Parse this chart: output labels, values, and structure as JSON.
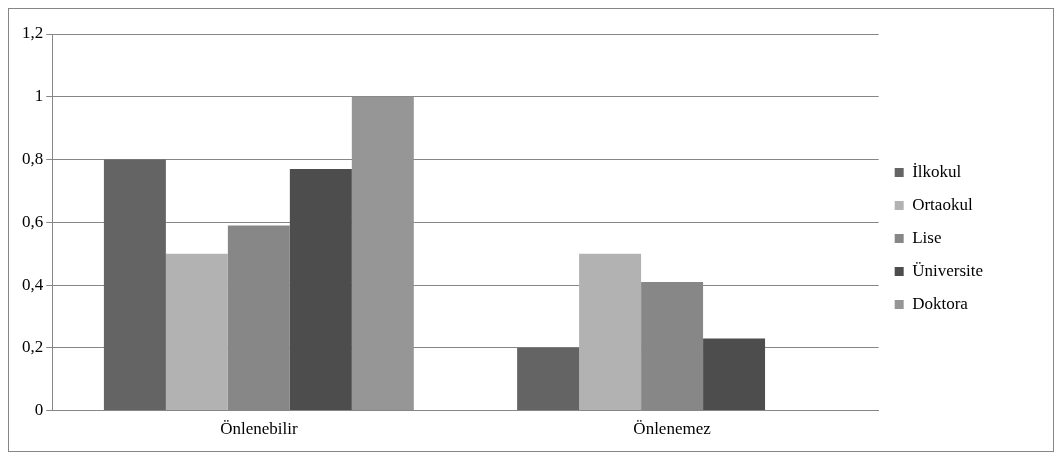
{
  "chart_data": {
    "type": "bar",
    "categories": [
      "Önlenebilir",
      "Önlenemez"
    ],
    "series": [
      {
        "name": "İlkokul",
        "color": "#646464",
        "values": [
          0.8,
          0.2
        ]
      },
      {
        "name": "Ortaokul",
        "color": "#b2b2b2",
        "values": [
          0.5,
          0.5
        ]
      },
      {
        "name": "Lise",
        "color": "#878787",
        "values": [
          0.59,
          0.41
        ]
      },
      {
        "name": "Üniversite",
        "color": "#4d4d4d",
        "values": [
          0.77,
          0.23
        ]
      },
      {
        "name": "Doktora",
        "color": "#969696",
        "values": [
          1,
          0
        ]
      }
    ],
    "ylim": [
      0,
      1.2
    ],
    "yticks": [
      0,
      {
        "value": 0.2,
        "label": "0,2"
      },
      {
        "value": 0.4,
        "label": "0,4"
      },
      {
        "value": 0.6,
        "label": "0,6"
      },
      {
        "value": 0.8,
        "label": "0,8"
      },
      1,
      {
        "value": 1.2,
        "label": "1,2"
      }
    ],
    "grid": "y",
    "legend": "right"
  }
}
